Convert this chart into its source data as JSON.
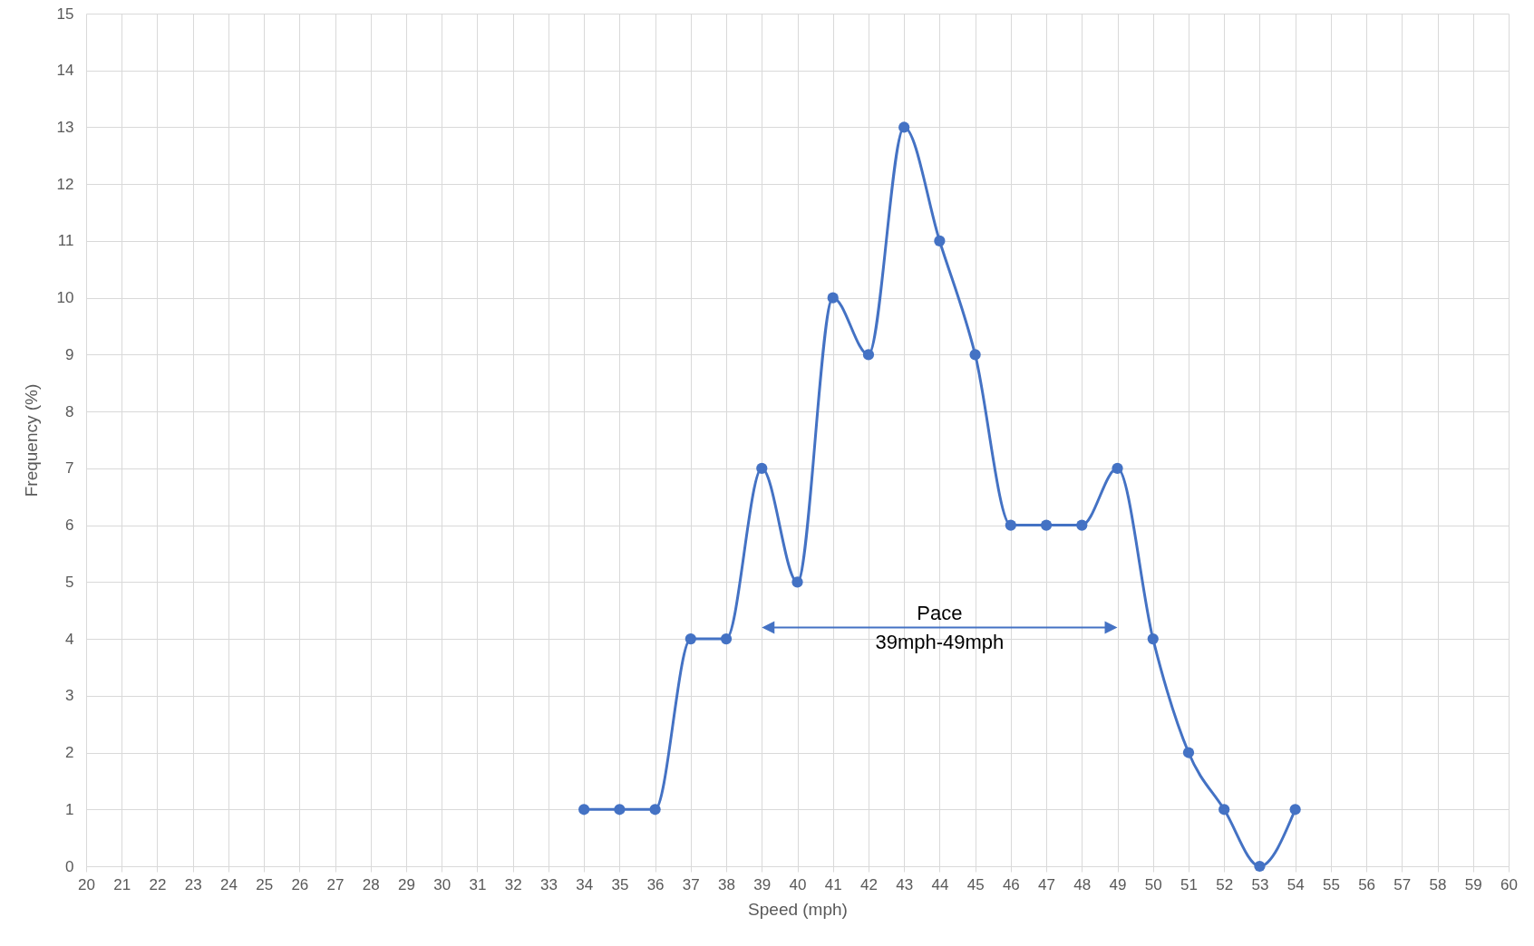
{
  "chart_data": {
    "type": "line",
    "xlabel": "Speed (mph)",
    "ylabel": "Frequency (%)",
    "x": [
      34,
      35,
      36,
      37,
      38,
      39,
      40,
      41,
      42,
      43,
      44,
      45,
      46,
      47,
      48,
      49,
      50,
      51,
      52,
      53,
      54
    ],
    "series": [
      {
        "color": "#4472c4",
        "values": [
          1,
          1,
          1,
          4,
          4,
          7,
          5,
          10,
          9,
          13,
          11,
          9,
          6,
          6,
          6,
          7,
          4,
          2,
          1,
          0,
          1
        ]
      }
    ],
    "xlim": [
      20,
      60
    ],
    "xticks": [
      20,
      21,
      22,
      23,
      24,
      25,
      26,
      27,
      28,
      29,
      30,
      31,
      32,
      33,
      34,
      35,
      36,
      37,
      38,
      39,
      40,
      41,
      42,
      43,
      44,
      45,
      46,
      47,
      48,
      49,
      50,
      51,
      52,
      53,
      54,
      55,
      56,
      57,
      58,
      59,
      60
    ],
    "ylim": [
      0,
      15
    ],
    "yticks": [
      0,
      1,
      2,
      3,
      4,
      5,
      6,
      7,
      8,
      9,
      10,
      11,
      12,
      13,
      14,
      15
    ],
    "grid": true,
    "marker": "circle",
    "line_style": "solid",
    "annotations": [
      "Pace\n39mph-49mph"
    ]
  }
}
